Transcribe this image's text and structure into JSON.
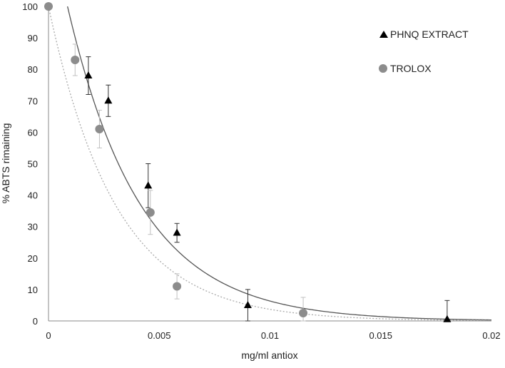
{
  "chart_data": {
    "type": "scatter",
    "xlabel": "mg/ml antiox",
    "ylabel": "% ABTS rimaining",
    "xlim": [
      0,
      0.02
    ],
    "ylim": [
      0,
      100
    ],
    "x_ticks": [
      "0",
      "0.005",
      "0.01",
      "0.015",
      "0.02"
    ],
    "y_ticks": [
      "0",
      "10",
      "20",
      "30",
      "40",
      "50",
      "60",
      "70",
      "80",
      "90",
      "100"
    ],
    "grid": false,
    "legend_position": "top-right",
    "series": [
      {
        "name": "PHNQ EXTRACT",
        "marker": "triangle",
        "color": "#000000",
        "errorbar_color": "#333333",
        "points": [
          {
            "x": 0.0018,
            "y": 78,
            "err": 6
          },
          {
            "x": 0.0027,
            "y": 70,
            "err": 5
          },
          {
            "x": 0.0045,
            "y": 43,
            "err": 7
          },
          {
            "x": 0.0058,
            "y": 28,
            "err": 3
          },
          {
            "x": 0.009,
            "y": 5,
            "err": 5
          },
          {
            "x": 0.018,
            "y": 0.5,
            "err": 6
          }
        ],
        "trendline": {
          "style": "solid",
          "color": "#555555",
          "model": "exponential",
          "a": 129.6,
          "k": 302
        }
      },
      {
        "name": "TROLOX",
        "marker": "circle",
        "color": "#8c8c8c",
        "errorbar_color": "#c0c0c0",
        "points": [
          {
            "x": 0,
            "y": 100,
            "err": 0
          },
          {
            "x": 0.0012,
            "y": 83,
            "err": 5
          },
          {
            "x": 0.0023,
            "y": 61,
            "err": 6
          },
          {
            "x": 0.0046,
            "y": 34.5,
            "err": 7
          },
          {
            "x": 0.0058,
            "y": 11,
            "err": 4
          },
          {
            "x": 0.0115,
            "y": 2.5,
            "err": 5
          }
        ],
        "trendline": {
          "style": "dotted",
          "color": "#aaaaaa",
          "model": "exponential",
          "a": 100,
          "k": 330
        }
      }
    ]
  }
}
